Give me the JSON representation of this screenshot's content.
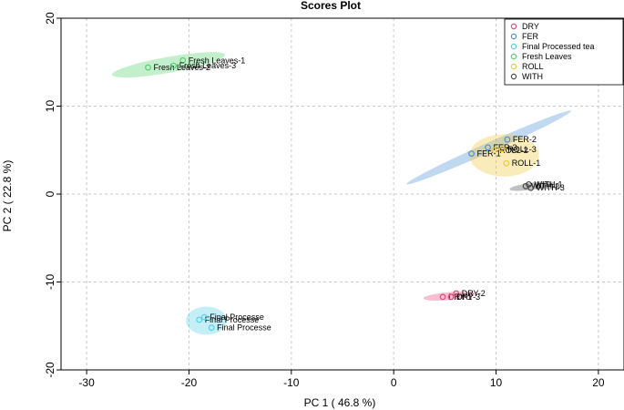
{
  "chart_data": {
    "type": "scatter",
    "title": "Scores Plot",
    "xlabel": "PC 1 ( 46.8 %)",
    "ylabel": "PC 2 ( 22.8 %)",
    "xlim": [
      -32.5,
      22.5
    ],
    "ylim": [
      -20,
      20
    ],
    "x_ticks": [
      -30,
      -20,
      -10,
      0,
      10,
      20
    ],
    "y_ticks": [
      -20,
      -10,
      0,
      10,
      20
    ],
    "grid": true,
    "legend_position": "top-right",
    "series": [
      {
        "name": "DRY",
        "color": "#e8487a",
        "points": [
          {
            "label": "DRY-1",
            "x": 4.8,
            "y": -11.7
          },
          {
            "label": "DRY-2",
            "x": 6.1,
            "y": -11.3
          },
          {
            "label": "DRY-3",
            "x": 5.6,
            "y": -11.7
          }
        ],
        "ellipse": {
          "cx": 5.5,
          "cy": -11.6,
          "rx": 2.6,
          "ry": 0.45,
          "angle_deg": 5
        }
      },
      {
        "name": "FER",
        "color": "#4d8fd6",
        "points": [
          {
            "label": "FER-1",
            "x": 7.6,
            "y": 4.6
          },
          {
            "label": "FER-2",
            "x": 11.1,
            "y": 6.2
          },
          {
            "label": "FER-3",
            "x": 9.2,
            "y": 5.3
          }
        ],
        "ellipse": {
          "cx": 9.3,
          "cy": 5.3,
          "rx": 8.8,
          "ry": 0.55,
          "angle_deg": 24
        }
      },
      {
        "name": "Final Processed tea",
        "color": "#55d0e6",
        "points": [
          {
            "label": "Final Processe",
            "x": -19.0,
            "y": -14.3
          },
          {
            "label": "Final Processe",
            "x": -17.8,
            "y": -15.2
          },
          {
            "label": "Final Processe",
            "x": -18.5,
            "y": -14.0
          }
        ],
        "ellipse": {
          "cx": -18.3,
          "cy": -14.4,
          "rx": 2.0,
          "ry": 1.6,
          "angle_deg": 0
        }
      },
      {
        "name": "Fresh Leaves",
        "color": "#55d06e",
        "points": [
          {
            "label": "Fresh Leaves-1",
            "x": -20.6,
            "y": 15.2
          },
          {
            "label": "Fresh Leaves-2",
            "x": -24.0,
            "y": 14.4
          },
          {
            "label": "Fresh Leaves-3",
            "x": -21.5,
            "y": 14.6
          }
        ],
        "ellipse": {
          "cx": -22.0,
          "cy": 14.7,
          "rx": 5.6,
          "ry": 0.9,
          "angle_deg": 10
        }
      },
      {
        "name": "ROLL",
        "color": "#f0c93a",
        "points": [
          {
            "label": "ROLL-1",
            "x": 11.0,
            "y": 3.5
          },
          {
            "label": "ROLL-2",
            "x": 9.8,
            "y": 5.0
          },
          {
            "label": "ROLL-3",
            "x": 10.6,
            "y": 5.1
          }
        ],
        "ellipse": {
          "cx": 10.8,
          "cy": 4.4,
          "rx": 3.4,
          "ry": 2.4,
          "angle_deg": 0
        }
      },
      {
        "name": "WITH",
        "color": "#4a4a4a",
        "points": [
          {
            "label": "WITH-1",
            "x": 13.2,
            "y": 1.1
          },
          {
            "label": "WITH-2",
            "x": 12.9,
            "y": 0.9
          },
          {
            "label": "WITH-3",
            "x": 13.4,
            "y": 0.7
          }
        ],
        "ellipse": {
          "cx": 13.5,
          "cy": 0.9,
          "rx": 2.2,
          "ry": 0.4,
          "angle_deg": 8
        }
      }
    ]
  }
}
